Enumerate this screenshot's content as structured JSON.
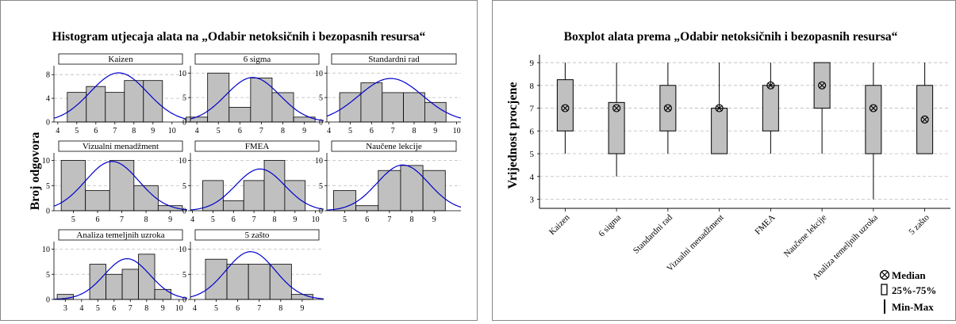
{
  "chart_data": [
    {
      "type": "bar",
      "title": "Histogram utjecaja alata na „Odabir netoksičnih i bezopasnih resursa“",
      "ylabel": "Broj odgovora",
      "grid": true,
      "subplots": [
        {
          "name": "Kaizen",
          "x_ticks": [
            "4",
            "5",
            "6",
            "7",
            "8",
            "9",
            "10"
          ],
          "x_range": [
            3.8,
            10.8
          ],
          "y_ticks": [
            "0",
            "4",
            "8"
          ],
          "y_range": [
            0,
            9.5
          ],
          "bins": [
            5,
            6,
            7,
            8,
            9
          ],
          "values": [
            5,
            6,
            5,
            7,
            7
          ],
          "curve": {
            "mean": 7.2,
            "sd": 1.5,
            "peak": 8.3
          }
        },
        {
          "name": "6 sigma",
          "x_ticks": [
            "4",
            "5",
            "6",
            "7",
            "8",
            "9"
          ],
          "x_range": [
            3.7,
            9.9
          ],
          "y_ticks": [
            "0",
            "5",
            "10"
          ],
          "y_range": [
            0,
            11.5
          ],
          "bins": [
            4,
            5,
            6,
            7,
            8,
            9
          ],
          "values": [
            1,
            10,
            3,
            9,
            6,
            1
          ],
          "curve": {
            "mean": 6.6,
            "sd": 1.25,
            "peak": 9.1
          }
        },
        {
          "name": "Standardni rad",
          "x_ticks": [
            "4",
            "5",
            "6",
            "7",
            "8",
            "9",
            "10"
          ],
          "x_range": [
            3.9,
            10.2
          ],
          "y_ticks": [
            "0",
            "5",
            "10"
          ],
          "y_range": [
            0,
            11.5
          ],
          "bins": [
            5,
            6,
            7,
            8,
            9
          ],
          "values": [
            6,
            8,
            6,
            6,
            4
          ],
          "curve": {
            "mean": 6.9,
            "sd": 1.5,
            "peak": 8.9
          }
        },
        {
          "name": "Vizualni menadžment",
          "x_ticks": [
            "5",
            "6",
            "7",
            "8",
            "9"
          ],
          "x_range": [
            4.2,
            9.7
          ],
          "y_ticks": [
            "0",
            "5",
            "10"
          ],
          "y_range": [
            0,
            11.5
          ],
          "bins": [
            5,
            6,
            7,
            8,
            9
          ],
          "values": [
            10,
            4,
            10,
            5,
            1
          ],
          "curve": {
            "mean": 6.6,
            "sd": 1.1,
            "peak": 9.8
          }
        },
        {
          "name": "FMEA",
          "x_ticks": [
            "4",
            "5",
            "6",
            "7",
            "8",
            "9",
            "10"
          ],
          "x_range": [
            3.9,
            10.4
          ],
          "y_ticks": [
            "0",
            "5",
            "10"
          ],
          "y_range": [
            0,
            11.5
          ],
          "bins": [
            5,
            6,
            7,
            8,
            9
          ],
          "values": [
            6,
            2,
            6,
            10,
            6
          ],
          "curve": {
            "mean": 7.3,
            "sd": 1.2,
            "peak": 8.3
          }
        },
        {
          "name": "Naučene lekcije",
          "x_ticks": [
            "5",
            "6",
            "7",
            "8",
            "9"
          ],
          "x_range": [
            4.2,
            10.2
          ],
          "y_ticks": [
            "0",
            "5",
            "10"
          ],
          "y_range": [
            0,
            11.5
          ],
          "bins": [
            5,
            6,
            7,
            8,
            9
          ],
          "values": [
            4,
            1,
            8,
            9,
            8
          ],
          "curve": {
            "mean": 7.6,
            "sd": 1.15,
            "peak": 9.1
          }
        },
        {
          "name": "Analiza temeljnih uzroka",
          "x_ticks": [
            "3",
            "4",
            "5",
            "6",
            "7",
            "8",
            "9",
            "10"
          ],
          "x_range": [
            2.3,
            10.5
          ],
          "y_ticks": [
            "0",
            "5",
            "10"
          ],
          "y_range": [
            0,
            11.5
          ],
          "bins": [
            3,
            5,
            6,
            7,
            8,
            9
          ],
          "values": [
            1,
            7,
            5,
            6,
            9,
            2
          ],
          "curve": {
            "mean": 6.8,
            "sd": 1.4,
            "peak": 8.1
          }
        },
        {
          "name": "5 zašto",
          "x_ticks": [
            "4",
            "5",
            "6",
            "7",
            "8",
            "9"
          ],
          "x_range": [
            3.8,
            10.0
          ],
          "y_ticks": [
            "0",
            "5",
            "10"
          ],
          "y_range": [
            0,
            11.5
          ],
          "bins": [
            5,
            6,
            7,
            8,
            9
          ],
          "values": [
            8,
            7,
            7,
            7,
            1
          ],
          "curve": {
            "mean": 6.6,
            "sd": 1.15,
            "peak": 9.5
          }
        }
      ]
    },
    {
      "type": "box",
      "title": "Boxplot alata prema „Odabir netoksičnih i bezopasnih resursa“",
      "ylabel": "Vrijednost procjene",
      "ylim": [
        2.6,
        9.35
      ],
      "yticks": [
        3,
        4,
        5,
        6,
        7,
        8,
        9
      ],
      "grid": true,
      "categories": [
        "Kaizen",
        "6 sigma",
        "Standardni rad",
        "Vizualni menadžment",
        "FMEA",
        "Naučene lekcije",
        "Analiza temeljnih uzroka",
        "5 zašto"
      ],
      "boxes": [
        {
          "min": 5,
          "q1": 6,
          "median": 7,
          "q3": 8.25,
          "max": 9
        },
        {
          "min": 4,
          "q1": 5,
          "median": 7,
          "q3": 7.25,
          "max": 9
        },
        {
          "min": 5,
          "q1": 6,
          "median": 7,
          "q3": 8,
          "max": 9
        },
        {
          "min": 5,
          "q1": 5,
          "median": 7,
          "q3": 7,
          "max": 9
        },
        {
          "min": 5,
          "q1": 6,
          "median": 8,
          "q3": 8,
          "max": 9
        },
        {
          "min": 5,
          "q1": 7,
          "median": 8,
          "q3": 9,
          "max": 9
        },
        {
          "min": 3,
          "q1": 5,
          "median": 7,
          "q3": 8,
          "max": 9
        },
        {
          "min": 5,
          "q1": 5,
          "median": 6.5,
          "q3": 8,
          "max": 9
        }
      ],
      "legend": {
        "placement": "bottom-right",
        "items": [
          "Median",
          "25%-75%",
          "Min-Max"
        ]
      }
    }
  ]
}
